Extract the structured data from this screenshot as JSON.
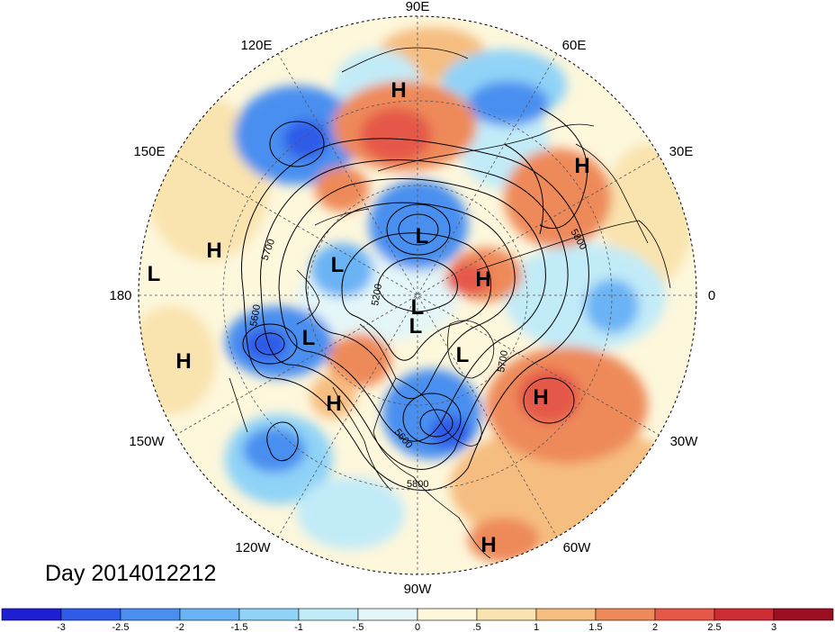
{
  "title": "Day 2014012212",
  "longitude_labels": [
    "90E",
    "60E",
    "30E",
    "0",
    "30W",
    "60W",
    "90W",
    "120W",
    "150W",
    "180",
    "150E",
    "120E"
  ],
  "contour_labels": [
    "5700",
    "5800",
    "5600",
    "5200",
    "5700",
    "5600",
    "5800"
  ],
  "centers": [
    "H",
    "H",
    "H",
    "H",
    "H",
    "H",
    "H",
    "H",
    "L",
    "L",
    "L",
    "L",
    "L",
    "L",
    "L"
  ],
  "colorbar": {
    "colors": [
      "#1e1ed2",
      "#2f5be8",
      "#4a8ff0",
      "#6ab3f5",
      "#90d3f7",
      "#c2ebf8",
      "#e4f6f7",
      "#fdf7dc",
      "#f9e3ae",
      "#f6bd80",
      "#ee8a5a",
      "#e55848",
      "#cd2c33",
      "#9c0f22"
    ],
    "labels": [
      "-3",
      "-2.5",
      "-2",
      "-1.5",
      "-1",
      "-.5",
      "0",
      ".5",
      "1",
      "1.5",
      "2",
      "2.5",
      "3"
    ]
  },
  "map_colors": {
    "ocean_neutral": "#fdf7dc",
    "land_line": "#000000",
    "grid_line": "#555555"
  }
}
